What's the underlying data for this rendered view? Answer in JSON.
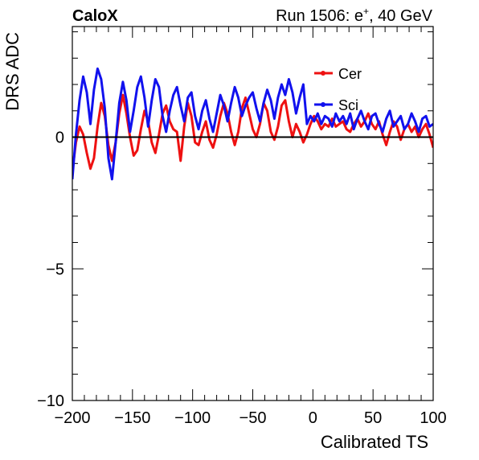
{
  "header": {
    "brand": "CaloX",
    "run_info_prefix": "Run 1506: e",
    "run_info_sup": "+",
    "run_info_suffix": ", 40 GeV"
  },
  "colors": {
    "cer": "#ee1111",
    "sci": "#1111ee",
    "axis": "#000000"
  },
  "chart_data": {
    "type": "line",
    "xlabel": "Calibrated TS",
    "ylabel": "DRS ADC",
    "xlim": [
      -200,
      100
    ],
    "ylim": [
      -10,
      4.2
    ],
    "x_ticks": [
      -200,
      -150,
      -100,
      -50,
      0,
      50,
      100
    ],
    "x_tick_labels": [
      "−200",
      "−150",
      "−100",
      "−50",
      "0",
      "50",
      "100"
    ],
    "y_ticks": [
      -10,
      -5,
      0
    ],
    "y_tick_labels": [
      "−10",
      "−5",
      "0"
    ],
    "reference_line_y": 0,
    "legend_placement": "top-right",
    "series": [
      {
        "name": "Cer",
        "color": "#ee1111",
        "x": [
          -200,
          -197,
          -194,
          -191,
          -188,
          -185,
          -182,
          -179,
          -176,
          -173,
          -170,
          -167,
          -164,
          -161,
          -158,
          -155,
          -152,
          -149,
          -146,
          -143,
          -140,
          -137,
          -134,
          -131,
          -128,
          -125,
          -122,
          -119,
          -116,
          -113,
          -110,
          -107,
          -104,
          -101,
          -98,
          -95,
          -92,
          -89,
          -86,
          -83,
          -80,
          -77,
          -74,
          -71,
          -68,
          -65,
          -62,
          -59,
          -56,
          -53,
          -50,
          -47,
          -44,
          -41,
          -38,
          -35,
          -32,
          -29,
          -26,
          -23,
          -20,
          -17,
          -14,
          -11,
          -8,
          -5,
          -2,
          1,
          4,
          7,
          10,
          13,
          16,
          19,
          22,
          25,
          28,
          31,
          34,
          37,
          40,
          43,
          46,
          49,
          52,
          55,
          58,
          61,
          64,
          67,
          70,
          73,
          76,
          79,
          82,
          85,
          88,
          91,
          94,
          97,
          100
        ],
        "y": [
          -1.3,
          -0.2,
          0.4,
          0.1,
          -0.6,
          -1.2,
          -0.8,
          0.4,
          1.3,
          0.8,
          -0.3,
          -0.9,
          -0.2,
          0.9,
          1.6,
          0.9,
          0.0,
          -0.7,
          -0.5,
          0.3,
          1.0,
          0.6,
          -0.2,
          -0.6,
          0.1,
          0.9,
          1.2,
          0.6,
          0.3,
          0.2,
          -0.9,
          0.4,
          1.3,
          0.8,
          -0.2,
          -0.3,
          0.2,
          0.6,
          -0.1,
          -0.4,
          0.1,
          0.8,
          1.3,
          0.9,
          0.2,
          -0.3,
          0.2,
          1.1,
          1.5,
          0.9,
          0.3,
          0.0,
          0.5,
          1.3,
          1.0,
          0.2,
          -0.1,
          0.4,
          1.2,
          1.4,
          0.6,
          0.0,
          0.5,
          0.2,
          -0.2,
          0.1,
          0.5,
          0.8,
          0.6,
          0.3,
          0.5,
          0.4,
          0.7,
          0.4,
          0.5,
          0.6,
          0.3,
          0.2,
          0.5,
          0.7,
          0.4,
          0.6,
          0.9,
          0.5,
          0.3,
          0.6,
          0.1,
          -0.3,
          0.2,
          0.6,
          0.4,
          -0.1,
          0.3,
          0.5,
          0.2,
          0.4,
          0.0,
          0.3,
          0.5,
          0.1,
          -0.4
        ]
      },
      {
        "name": "Sci",
        "color": "#1111ee",
        "x": [
          -200,
          -197,
          -194,
          -191,
          -188,
          -185,
          -182,
          -179,
          -176,
          -173,
          -170,
          -167,
          -164,
          -161,
          -158,
          -155,
          -152,
          -149,
          -146,
          -143,
          -140,
          -137,
          -134,
          -131,
          -128,
          -125,
          -122,
          -119,
          -116,
          -113,
          -110,
          -107,
          -104,
          -101,
          -98,
          -95,
          -92,
          -89,
          -86,
          -83,
          -80,
          -77,
          -74,
          -71,
          -68,
          -65,
          -62,
          -59,
          -56,
          -53,
          -50,
          -47,
          -44,
          -41,
          -38,
          -35,
          -32,
          -29,
          -26,
          -23,
          -20,
          -17,
          -14,
          -11,
          -8,
          -5,
          -2,
          1,
          4,
          7,
          10,
          13,
          16,
          19,
          22,
          25,
          28,
          31,
          34,
          37,
          40,
          43,
          46,
          49,
          52,
          55,
          58,
          61,
          64,
          67,
          70,
          73,
          76,
          79,
          82,
          85,
          88,
          91,
          94,
          97,
          100
        ],
        "y": [
          -1.6,
          0.1,
          1.4,
          2.3,
          1.7,
          0.5,
          1.8,
          2.6,
          2.2,
          1.1,
          -0.8,
          -1.6,
          -0.2,
          1.3,
          2.1,
          1.4,
          0.2,
          1.0,
          1.9,
          2.3,
          1.5,
          0.4,
          1.4,
          2.2,
          1.9,
          0.8,
          0.2,
          1.0,
          1.6,
          1.9,
          1.2,
          0.6,
          1.5,
          1.7,
          0.8,
          0.3,
          1.0,
          1.4,
          0.7,
          0.2,
          0.9,
          1.6,
          1.2,
          0.6,
          1.3,
          1.9,
          1.5,
          0.8,
          1.2,
          1.5,
          1.7,
          1.1,
          0.6,
          1.3,
          1.8,
          1.4,
          0.7,
          1.5,
          2.0,
          1.6,
          2.2,
          1.7,
          0.9,
          1.5,
          2.0,
          0.5,
          0.8,
          0.6,
          0.9,
          0.5,
          0.8,
          0.7,
          0.4,
          0.9,
          0.6,
          0.8,
          0.5,
          0.9,
          0.3,
          0.7,
          1.0,
          0.6,
          0.3,
          0.8,
          0.9,
          0.5,
          0.2,
          0.7,
          1.0,
          0.4,
          0.6,
          0.8,
          0.3,
          0.5,
          0.9,
          0.6,
          0.2,
          0.7,
          0.8,
          0.4,
          0.5
        ]
      }
    ]
  }
}
